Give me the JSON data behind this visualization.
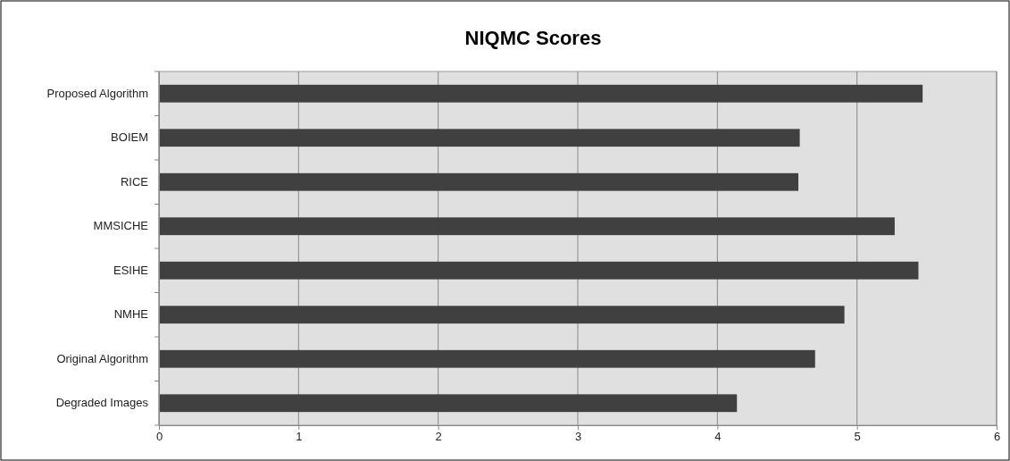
{
  "chart_data": {
    "type": "bar",
    "orientation": "horizontal",
    "title": "NIQMC Scores",
    "categories": [
      "Proposed Algorithm",
      "BOIEM",
      "RICE",
      "MMSICHE",
      "ESIHE",
      "NMHE",
      "Original Algorithm",
      "Degraded Images"
    ],
    "values": [
      5.47,
      4.59,
      4.58,
      5.27,
      5.44,
      4.91,
      4.7,
      4.14
    ],
    "color": "#404040",
    "xlim": [
      0,
      6
    ],
    "xticks": [
      0,
      1,
      2,
      3,
      4,
      5,
      6
    ],
    "grid": "x"
  }
}
